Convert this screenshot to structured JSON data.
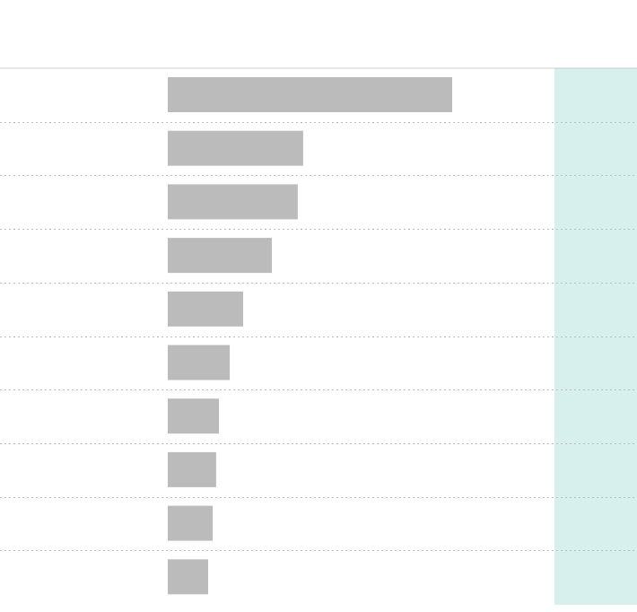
{
  "chart_data": {
    "type": "bar",
    "values": [
      100,
      47.6,
      45.7,
      36.6,
      26.5,
      21.8,
      18,
      17,
      15.8,
      14.2
    ],
    "color": "#bbbbbb"
  }
}
